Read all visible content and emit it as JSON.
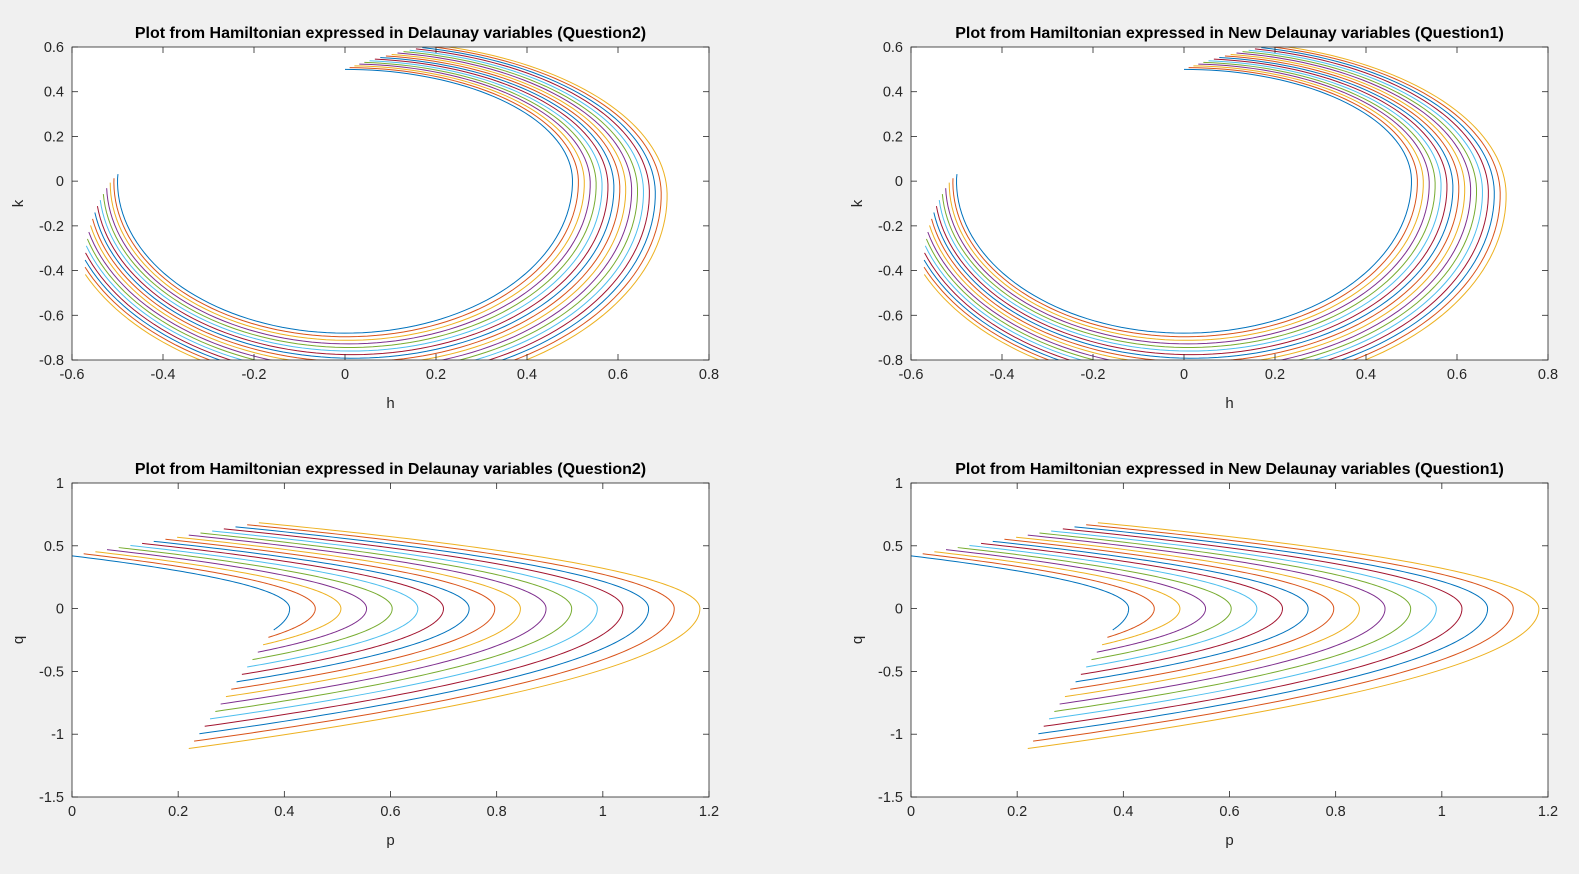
{
  "palette": [
    "#0072BD",
    "#D95319",
    "#EDB120",
    "#7E2F8E",
    "#77AC30",
    "#4DBEEE",
    "#A2142F"
  ],
  "chart_data": [
    {
      "type": "line",
      "title": "Plot from Hamiltonian expressed in Delaunay variables (Question2)",
      "xlabel": "h",
      "ylabel": "k",
      "xlim": [
        -0.6,
        0.8
      ],
      "ylim": [
        -0.8,
        0.6
      ],
      "xticks": [
        "-0.6",
        "-0.4",
        "-0.2",
        "0",
        "0.2",
        "0.4",
        "0.6",
        "0.8"
      ],
      "yticks": [
        "-0.8",
        "-0.6",
        "-0.4",
        "-0.2",
        "0",
        "0.2",
        "0.4",
        "0.6"
      ],
      "grid": false,
      "family": "hk",
      "n_series": 17
    },
    {
      "type": "line",
      "title": "Plot from Hamiltonian expressed in New Delaunay variables (Question1)",
      "xlabel": "h",
      "ylabel": "k",
      "xlim": [
        -0.6,
        0.8
      ],
      "ylim": [
        -0.8,
        0.6
      ],
      "xticks": [
        "-0.6",
        "-0.4",
        "-0.2",
        "0",
        "0.2",
        "0.4",
        "0.6",
        "0.8"
      ],
      "yticks": [
        "-0.8",
        "-0.6",
        "-0.4",
        "-0.2",
        "0",
        "0.2",
        "0.4",
        "0.6"
      ],
      "grid": false,
      "family": "hk",
      "n_series": 17
    },
    {
      "type": "line",
      "title": "Plot from Hamiltonian expressed in Delaunay variables (Question2)",
      "xlabel": "p",
      "ylabel": "q",
      "xlim": [
        0,
        1.2
      ],
      "ylim": [
        -1.5,
        1
      ],
      "xticks": [
        "0",
        "0.2",
        "0.4",
        "0.6",
        "0.8",
        "1",
        "1.2"
      ],
      "yticks": [
        "-1.5",
        "-1",
        "-0.5",
        "0",
        "0.5",
        "1"
      ],
      "grid": false,
      "family": "pq",
      "n_series": 17
    },
    {
      "type": "line",
      "title": "Plot from Hamiltonian expressed in New Delaunay variables (Question1)",
      "xlabel": "p",
      "ylabel": "q",
      "xlim": [
        0,
        1.2
      ],
      "ylim": [
        -1.5,
        1
      ],
      "xticks": [
        "0",
        "0.2",
        "0.4",
        "0.6",
        "0.8",
        "1",
        "1.2"
      ],
      "yticks": [
        "-1.5",
        "-1",
        "-0.5",
        "0",
        "0.5",
        "1"
      ],
      "grid": false,
      "family": "pq",
      "n_series": 17
    }
  ]
}
